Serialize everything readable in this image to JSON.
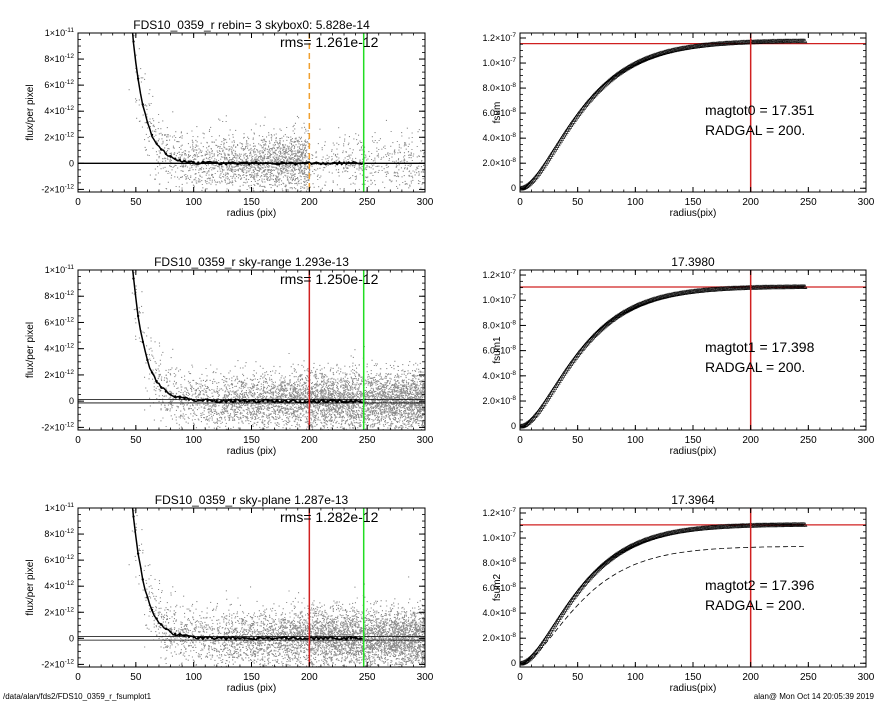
{
  "footer": {
    "path": "/data/alan/fds2/FDS10_0359_r_fsumplot1",
    "stamp": "alan@  Mon Oct 14 20:05:39 2019"
  },
  "chart_data": [
    {
      "type": "scatter",
      "panel": "left-1",
      "title": "FDS10_0359_r rebin= 3    skybox0:  5.828e-14",
      "annotations": [
        "rms= 1.261e-12"
      ],
      "xlabel": "radius (pix)",
      "ylabel": "flux/per pixel",
      "xlim": [
        0,
        300
      ],
      "ylim": [
        -2.2e-12,
        1e-11
      ],
      "xticks": [
        0,
        50,
        100,
        150,
        200,
        250,
        300
      ],
      "yticks": [
        {
          "v": -2e-12,
          "m": "-2×10",
          "e": "-12"
        },
        {
          "v": 0,
          "m": "0",
          "e": ""
        },
        {
          "v": 2e-12,
          "m": "2×10",
          "e": "-12"
        },
        {
          "v": 4e-12,
          "m": "4×10",
          "e": "-12"
        },
        {
          "v": 6e-12,
          "m": "6×10",
          "e": "-12"
        },
        {
          "v": 8e-12,
          "m": "8×10",
          "e": "-12"
        },
        {
          "v": 1e-11,
          "m": "1×10",
          "e": "-11"
        }
      ],
      "profile": {
        "A": 4.8e-11,
        "r0": 30,
        "h": 11
      },
      "scatter_cut": 200,
      "vlines": [
        {
          "x": 200,
          "color": "#f0a030",
          "style": "dashed"
        },
        {
          "x": 247,
          "color": "#22dd22",
          "style": "solid"
        }
      ],
      "hlines": [
        {
          "y": 0,
          "color": "#000000",
          "double": false
        }
      ]
    },
    {
      "type": "line",
      "panel": "right-1",
      "title": "",
      "annotations": [
        "magtot0 =  17.351",
        "RADGAL =    200."
      ],
      "xlabel": "radius(pix)",
      "ylabel": "fsum",
      "xlim": [
        0,
        300
      ],
      "ylim": [
        -3e-09,
        1.24e-07
      ],
      "xticks": [
        0,
        50,
        100,
        150,
        200,
        250,
        300
      ],
      "yticks": [
        {
          "v": 0,
          "m": "0",
          "e": ""
        },
        {
          "v": 2e-08,
          "m": "2.0×10",
          "e": "-8"
        },
        {
          "v": 4e-08,
          "m": "4.0×10",
          "e": "-8"
        },
        {
          "v": 6e-08,
          "m": "6.0×10",
          "e": "-8"
        },
        {
          "v": 8e-08,
          "m": "8.0×10",
          "e": "-8"
        },
        {
          "v": 1e-07,
          "m": "1.0×10",
          "e": "-7"
        },
        {
          "v": 1.2e-07,
          "m": "1.2×10",
          "e": "-7"
        }
      ],
      "curve": {
        "total": 1.18e-07,
        "h": 30,
        "rmax": 247
      },
      "vlines": [
        {
          "x": 200,
          "color": "#d02020"
        }
      ],
      "hlines": [
        {
          "y": 1.155e-07,
          "color": "#d02020"
        }
      ]
    },
    {
      "type": "scatter",
      "panel": "left-2",
      "title": "FDS10_0359_r sky-range  1.293e-13",
      "annotations": [
        "rms= 1.250e-12"
      ],
      "xlabel": "radius (pix)",
      "ylabel": "flux/per pixel",
      "xlim": [
        0,
        300
      ],
      "ylim": [
        -2.2e-12,
        1e-11
      ],
      "xticks": [
        0,
        50,
        100,
        150,
        200,
        250,
        300
      ],
      "yticks": [
        {
          "v": -2e-12,
          "m": "-2×10",
          "e": "-12"
        },
        {
          "v": 0,
          "m": "0",
          "e": ""
        },
        {
          "v": 2e-12,
          "m": "2×10",
          "e": "-12"
        },
        {
          "v": 4e-12,
          "m": "4×10",
          "e": "-12"
        },
        {
          "v": 6e-12,
          "m": "6×10",
          "e": "-12"
        },
        {
          "v": 8e-12,
          "m": "8×10",
          "e": "-12"
        },
        {
          "v": 1e-11,
          "m": "1×10",
          "e": "-11"
        }
      ],
      "profile": {
        "A": 4.8e-11,
        "r0": 30,
        "h": 11
      },
      "scatter_cut": 300,
      "vlines": [
        {
          "x": 200,
          "color": "#d02020",
          "style": "solid"
        },
        {
          "x": 247,
          "color": "#22dd22",
          "style": "solid"
        }
      ],
      "hlines": [
        {
          "y": 0,
          "color": "#000000",
          "double": true
        }
      ]
    },
    {
      "type": "line",
      "panel": "right-2",
      "title": "17.3980",
      "annotations": [
        "magtot1 =  17.398",
        "RADGAL =    200."
      ],
      "xlabel": "radius(pix)",
      "ylabel": "fsum1",
      "xlim": [
        0,
        300
      ],
      "ylim": [
        -3e-09,
        1.24e-07
      ],
      "xticks": [
        0,
        50,
        100,
        150,
        200,
        250,
        300
      ],
      "yticks": [
        {
          "v": 0,
          "m": "0",
          "e": ""
        },
        {
          "v": 2e-08,
          "m": "2.0×10",
          "e": "-8"
        },
        {
          "v": 4e-08,
          "m": "4.0×10",
          "e": "-8"
        },
        {
          "v": 6e-08,
          "m": "6.0×10",
          "e": "-8"
        },
        {
          "v": 8e-08,
          "m": "8.0×10",
          "e": "-8"
        },
        {
          "v": 1e-07,
          "m": "1.0×10",
          "e": "-7"
        },
        {
          "v": 1.2e-07,
          "m": "1.2×10",
          "e": "-7"
        }
      ],
      "curve": {
        "total": 1.11e-07,
        "h": 29,
        "rmax": 247
      },
      "vlines": [
        {
          "x": 200,
          "color": "#d02020"
        }
      ],
      "hlines": [
        {
          "y": 1.105e-07,
          "color": "#d02020"
        }
      ]
    },
    {
      "type": "scatter",
      "panel": "left-3",
      "title": "FDS10_0359_r sky-plane  1.287e-13",
      "annotations": [
        "rms= 1.282e-12"
      ],
      "xlabel": "radius (pix)",
      "ylabel": "flux/per pixel",
      "xlim": [
        0,
        300
      ],
      "ylim": [
        -2.2e-12,
        1e-11
      ],
      "xticks": [
        0,
        50,
        100,
        150,
        200,
        250,
        300
      ],
      "yticks": [
        {
          "v": -2e-12,
          "m": "-2×10",
          "e": "-12"
        },
        {
          "v": 0,
          "m": "0",
          "e": ""
        },
        {
          "v": 2e-12,
          "m": "2×10",
          "e": "-12"
        },
        {
          "v": 4e-12,
          "m": "4×10",
          "e": "-12"
        },
        {
          "v": 6e-12,
          "m": "6×10",
          "e": "-12"
        },
        {
          "v": 8e-12,
          "m": "8×10",
          "e": "-12"
        },
        {
          "v": 1e-11,
          "m": "1×10",
          "e": "-11"
        }
      ],
      "profile": {
        "A": 4.8e-11,
        "r0": 30,
        "h": 11
      },
      "scatter_cut": 300,
      "vlines": [
        {
          "x": 200,
          "color": "#d02020",
          "style": "solid"
        },
        {
          "x": 247,
          "color": "#22dd22",
          "style": "solid"
        }
      ],
      "hlines": [
        {
          "y": 0,
          "color": "#000000",
          "double": true
        }
      ]
    },
    {
      "type": "line",
      "panel": "right-3",
      "title": "17.3964",
      "annotations": [
        "magtot2 =  17.396",
        "RADGAL =    200."
      ],
      "xlabel": "radius(pix)",
      "ylabel": "fsum2",
      "xlim": [
        0,
        300
      ],
      "ylim": [
        -3e-09,
        1.24e-07
      ],
      "xticks": [
        0,
        50,
        100,
        150,
        200,
        250,
        300
      ],
      "yticks": [
        {
          "v": 0,
          "m": "0",
          "e": ""
        },
        {
          "v": 2e-08,
          "m": "2.0×10",
          "e": "-8"
        },
        {
          "v": 4e-08,
          "m": "4.0×10",
          "e": "-8"
        },
        {
          "v": 6e-08,
          "m": "6.0×10",
          "e": "-8"
        },
        {
          "v": 8e-08,
          "m": "8.0×10",
          "e": "-8"
        },
        {
          "v": 1e-07,
          "m": "1.0×10",
          "e": "-7"
        },
        {
          "v": 1.2e-07,
          "m": "1.2×10",
          "e": "-7"
        }
      ],
      "curve": {
        "total": 1.11e-07,
        "h": 29,
        "rmax": 247
      },
      "dashed_curve": {
        "total": 9.35e-08,
        "h": 30,
        "rmax": 247
      },
      "vlines": [
        {
          "x": 200,
          "color": "#d02020"
        }
      ],
      "hlines": [
        {
          "y": 1.105e-07,
          "color": "#d02020"
        }
      ]
    }
  ]
}
